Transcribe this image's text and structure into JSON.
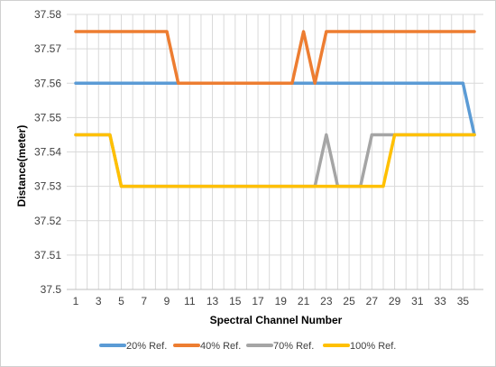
{
  "chart_data": {
    "type": "line",
    "xlabel": "Spectral Channel Number",
    "ylabel": "Distance(meter)",
    "ylim": [
      37.5,
      37.58
    ],
    "y_ticks": [
      "37.5",
      "37.51",
      "37.52",
      "37.53",
      "37.54",
      "37.55",
      "37.56",
      "37.57",
      "37.58"
    ],
    "xlim": [
      1,
      36
    ],
    "x_tick_labels": [
      "1",
      "3",
      "5",
      "7",
      "9",
      "11",
      "13",
      "15",
      "17",
      "19",
      "21",
      "23",
      "25",
      "27",
      "29",
      "31",
      "33",
      "35"
    ],
    "grid": "vertical and horizontal",
    "legend_position": "bottom",
    "x": [
      1,
      2,
      3,
      4,
      5,
      6,
      7,
      8,
      9,
      10,
      11,
      12,
      13,
      14,
      15,
      16,
      17,
      18,
      19,
      20,
      21,
      22,
      23,
      24,
      25,
      26,
      27,
      28,
      29,
      30,
      31,
      32,
      33,
      34,
      35,
      36
    ],
    "series": [
      {
        "name": "20% Ref.",
        "color": "#5b9bd5",
        "values": [
          37.56,
          37.56,
          37.56,
          37.56,
          37.56,
          37.56,
          37.56,
          37.56,
          37.56,
          37.56,
          37.56,
          37.56,
          37.56,
          37.56,
          37.56,
          37.56,
          37.56,
          37.56,
          37.56,
          37.56,
          37.56,
          37.56,
          37.56,
          37.56,
          37.56,
          37.56,
          37.56,
          37.56,
          37.56,
          37.56,
          37.56,
          37.56,
          37.56,
          37.56,
          37.56,
          37.545
        ]
      },
      {
        "name": "40% Ref.",
        "color": "#ed7d31",
        "values": [
          37.575,
          37.575,
          37.575,
          37.575,
          37.575,
          37.575,
          37.575,
          37.575,
          37.575,
          37.56,
          37.56,
          37.56,
          37.56,
          37.56,
          37.56,
          37.56,
          37.56,
          37.56,
          37.56,
          37.56,
          37.575,
          37.56,
          37.575,
          37.575,
          37.575,
          37.575,
          37.575,
          37.575,
          37.575,
          37.575,
          37.575,
          37.575,
          37.575,
          37.575,
          37.575,
          37.575
        ]
      },
      {
        "name": "70% Ref.",
        "color": "#a5a5a5",
        "values": [
          37.545,
          37.545,
          37.545,
          37.545,
          37.53,
          37.53,
          37.53,
          37.53,
          37.53,
          37.53,
          37.53,
          37.53,
          37.53,
          37.53,
          37.53,
          37.53,
          37.53,
          37.53,
          37.53,
          37.53,
          37.53,
          37.53,
          37.545,
          37.53,
          37.53,
          37.53,
          37.545,
          37.545,
          37.545,
          37.545,
          37.545,
          37.545,
          37.545,
          37.545,
          37.545,
          37.545
        ]
      },
      {
        "name": "100% Ref.",
        "color": "#ffc000",
        "values": [
          37.545,
          37.545,
          37.545,
          37.545,
          37.53,
          37.53,
          37.53,
          37.53,
          37.53,
          37.53,
          37.53,
          37.53,
          37.53,
          37.53,
          37.53,
          37.53,
          37.53,
          37.53,
          37.53,
          37.53,
          37.53,
          37.53,
          37.53,
          37.53,
          37.53,
          37.53,
          37.53,
          37.53,
          37.545,
          37.545,
          37.545,
          37.545,
          37.545,
          37.545,
          37.545,
          37.545
        ]
      }
    ]
  }
}
